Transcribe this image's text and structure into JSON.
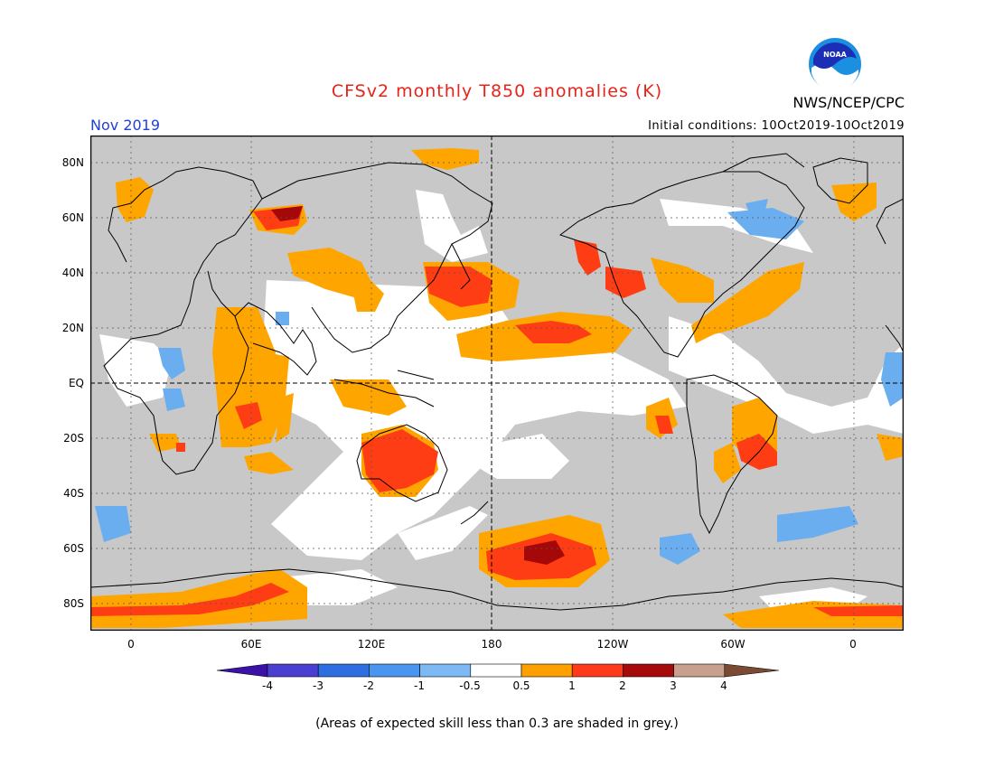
{
  "header": {
    "title": "CFSv2 monthly T850 anomalies (K)",
    "month": "Nov 2019",
    "agency": "NWS/NCEP/CPC",
    "initial_conditions": "Initial conditions: 10Oct2019-10Oct2019",
    "logo_text": "NOAA"
  },
  "axes": {
    "lat_labels": [
      "80N",
      "60N",
      "40N",
      "20N",
      "EQ",
      "20S",
      "40S",
      "60S",
      "80S"
    ],
    "lon_labels": [
      "0",
      "60E",
      "120E",
      "180",
      "120W",
      "60W",
      "0"
    ]
  },
  "colorbar": {
    "tick_labels": [
      "-4",
      "-3",
      "-2",
      "-1",
      "-0.5",
      "0.5",
      "1",
      "2",
      "3",
      "4"
    ],
    "colors": [
      "#3a12a8",
      "#4a3fd0",
      "#2d6ee0",
      "#4a95ef",
      "#7cb9f5",
      "#ffffff",
      "#ff9f00",
      "#ff3a1a",
      "#a60a0a",
      "#c9a08d",
      "#7a4a32"
    ]
  },
  "footnote": "(Areas of expected skill less than 0.3 are shaded in grey.)",
  "map_colors": {
    "grey": "#c8c8c8",
    "orange": "#ffa500",
    "red": "#ff3d14",
    "darkred": "#a50808",
    "lightblue": "#6aaef0"
  }
}
